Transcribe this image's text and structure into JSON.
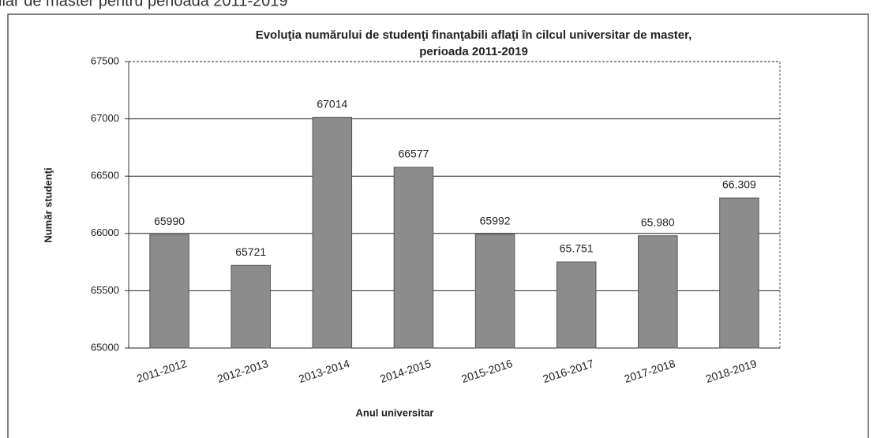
{
  "caption": "ilar de master pentru perioada 2011-2019",
  "chart_data": {
    "type": "bar",
    "title": [
      "Evoluţia numărului de studenţi finanţabili aflaţi în cilcul universitar de master,",
      "perioada 2011-2019"
    ],
    "x_label": "Anul universitar",
    "y_label": "Număr studenţi",
    "categories": [
      "2011-2012",
      "2012-2013",
      "2013-2014",
      "2014-2015",
      "2015-2016",
      "2016-2017",
      "2017-2018",
      "2018-2019"
    ],
    "values": [
      65990,
      65721,
      67014,
      66577,
      65992,
      65751,
      65980,
      66309
    ],
    "value_labels": [
      "65990",
      "65721",
      "67014",
      "66577",
      "65992",
      "65.751",
      "65.980",
      "66.309"
    ],
    "color": "#8c8c8c",
    "ylim": [
      65000,
      67500
    ],
    "yticks": [
      65000,
      65500,
      66000,
      66500,
      67000,
      67500
    ],
    "grid": true
  }
}
